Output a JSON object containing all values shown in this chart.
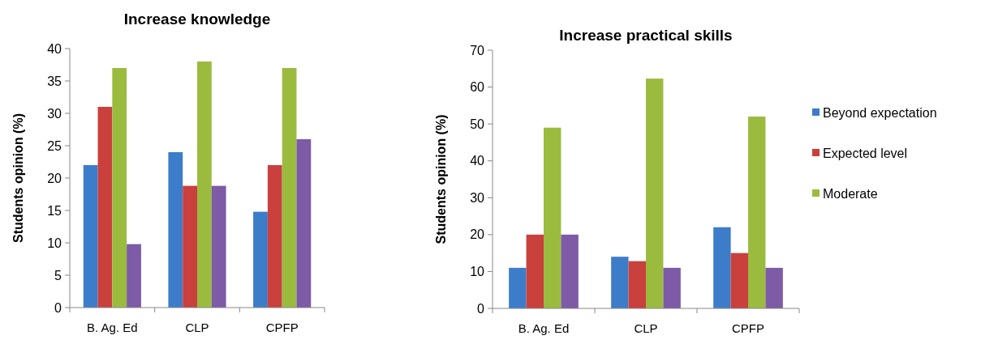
{
  "chart_data": [
    {
      "type": "bar",
      "title": "Increase knowledge",
      "ylabel": "Students opinion (%)",
      "categories": [
        "B. Ag. Ed",
        "CLP",
        "CPFP"
      ],
      "ylim": [
        0,
        40
      ],
      "yticks": [
        0,
        5,
        10,
        15,
        20,
        25,
        30,
        35,
        40
      ],
      "legend": false,
      "series": [
        {
          "color": "#3d7cc9",
          "values": [
            22,
            24,
            14.8
          ]
        },
        {
          "color": "#c9403c",
          "values": [
            31,
            18.8,
            22
          ]
        },
        {
          "color": "#9bbb3f",
          "values": [
            37,
            38,
            37
          ]
        },
        {
          "color": "#7d5ba6",
          "values": [
            9.8,
            18.8,
            26
          ]
        }
      ]
    },
    {
      "type": "bar",
      "title": "Increase practical skills",
      "ylabel": "Students opinion (%)",
      "categories": [
        "B. Ag. Ed",
        "CLP",
        "CPFP"
      ],
      "ylim": [
        0,
        70
      ],
      "yticks": [
        0,
        10,
        20,
        30,
        40,
        50,
        60,
        70
      ],
      "legend": "right",
      "series": [
        {
          "name": "Beyond expectation",
          "color": "#3d7cc9",
          "values": [
            11,
            14,
            22
          ]
        },
        {
          "name": "Expected level",
          "color": "#c9403c",
          "values": [
            20,
            12.8,
            15
          ]
        },
        {
          "name": "Moderate",
          "color": "#9bbb3f",
          "values": [
            49,
            62.3,
            52
          ]
        },
        {
          "color": "#7d5ba6",
          "values": [
            20,
            11,
            11
          ]
        }
      ]
    }
  ]
}
